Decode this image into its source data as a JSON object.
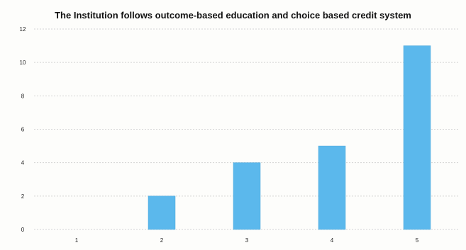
{
  "chart_data": {
    "type": "bar",
    "title": "The Institution follows outcome-based education and choice based credit system",
    "xlabel": "",
    "ylabel": "",
    "categories": [
      "1",
      "2",
      "3",
      "4",
      "5"
    ],
    "values": [
      0,
      2,
      4,
      5,
      11
    ],
    "ylim": [
      0,
      12
    ],
    "yticks": [
      "0",
      "2",
      "4",
      "6",
      "8",
      "10",
      "12"
    ],
    "grid": true,
    "legend": "none",
    "colors": {
      "bar": "#5bb8ec",
      "bar_edge": "#4aa6da",
      "grid": "#d4d4d4"
    }
  }
}
